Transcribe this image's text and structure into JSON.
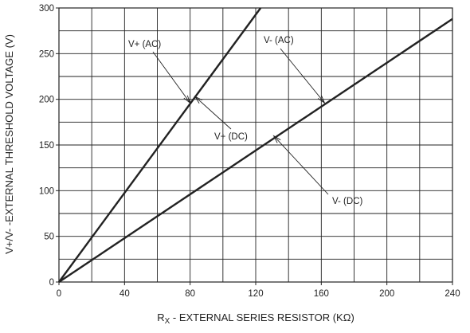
{
  "chart_data": {
    "type": "line",
    "xlabel_prefix": "R",
    "xlabel_sub": "X",
    "xlabel_rest": " - EXTERNAL SERIES RESISTOR (KΩ)",
    "ylabel": "V+/V-  -EXTERNAL THRESHOLD VOLTAGE (V)",
    "xlim": [
      0,
      240
    ],
    "ylim": [
      0,
      300
    ],
    "xticks": [
      0,
      40,
      80,
      120,
      160,
      200,
      240
    ],
    "yticks": [
      0,
      50,
      100,
      150,
      200,
      250,
      300
    ],
    "x_minor_step": 20,
    "y_minor_step": 25,
    "grid": true,
    "series": [
      {
        "x": [
          0,
          123
        ],
        "y": [
          0,
          300
        ]
      },
      {
        "x": [
          0,
          240
        ],
        "y": [
          0,
          288
        ]
      }
    ],
    "annotations": [
      {
        "text": "V+ (AC)",
        "at": [
          80,
          196
        ]
      },
      {
        "text": "V+ (DC)",
        "at": [
          83,
          203
        ]
      },
      {
        "text": "V- (AC)",
        "at": [
          162,
          196
        ]
      },
      {
        "text": "V- (DC)",
        "at": [
          131,
          160
        ]
      }
    ],
    "line_color": "#222222",
    "grid_color": "#222222"
  }
}
